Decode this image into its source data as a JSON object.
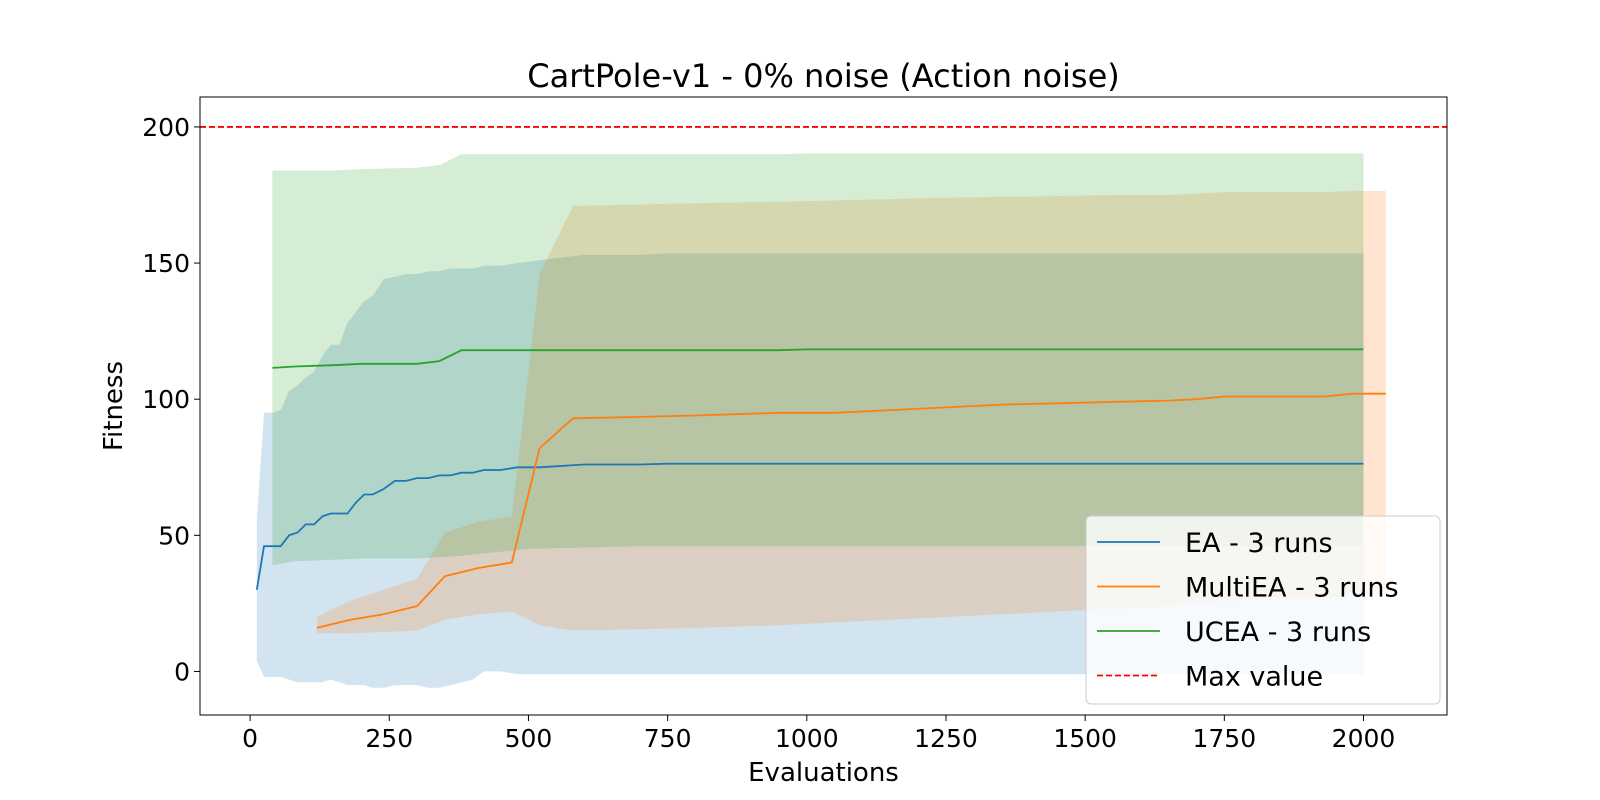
{
  "chart_data": {
    "type": "line",
    "title": "CartPole-v1 - 0% noise (Action noise)",
    "xlabel": "Evaluations",
    "ylabel": "Fitness",
    "xlim": [
      -90,
      2150
    ],
    "ylim": [
      -16,
      211
    ],
    "xticks": [
      0,
      250,
      500,
      750,
      1000,
      1250,
      1500,
      1750,
      2000
    ],
    "yticks": [
      0,
      50,
      100,
      150,
      200
    ],
    "grid": false,
    "legend_position": "lower-right",
    "reference_line": {
      "name": "Max value",
      "y": 200,
      "color": "#ff0000",
      "style": "dashed"
    },
    "series": [
      {
        "name": "EA - 3 runs",
        "color": "#1f77b4",
        "x": [
          12,
          25,
          40,
          55,
          70,
          85,
          100,
          115,
          130,
          145,
          160,
          175,
          190,
          205,
          220,
          240,
          260,
          280,
          300,
          320,
          340,
          360,
          380,
          400,
          420,
          450,
          480,
          520,
          600,
          700,
          750,
          900,
          1000,
          1500,
          2000
        ],
        "mean": [
          30,
          46,
          46,
          46,
          50,
          51,
          54,
          54,
          57,
          58,
          58,
          58,
          62,
          65,
          65,
          67,
          70,
          70,
          71,
          71,
          72,
          72,
          73,
          73,
          74,
          74,
          75,
          75,
          76,
          76,
          76.3,
          76.3,
          76.3,
          76.3,
          76.3
        ],
        "upper": [
          55,
          95,
          95,
          96,
          103,
          105,
          108,
          110,
          116,
          120,
          120,
          128,
          132,
          136,
          138,
          144,
          145,
          146,
          146,
          147,
          147,
          148,
          148,
          148,
          149,
          149,
          150,
          151,
          153,
          153,
          153.5,
          153.5,
          153.5,
          153.5,
          153.5
        ],
        "lower": [
          4,
          -2,
          -2,
          -2,
          -3,
          -4,
          -4,
          -4,
          -4,
          -3,
          -4,
          -5,
          -5,
          -5,
          -6,
          -6,
          -5,
          -5,
          -5,
          -6,
          -6,
          -5,
          -4,
          -3,
          0,
          0,
          -1,
          -1,
          -1,
          -1,
          -1,
          -1,
          -1,
          -1,
          -1
        ]
      },
      {
        "name": "MultiEA - 3 runs",
        "color": "#ff7f0e",
        "x": [
          120,
          180,
          240,
          300,
          350,
          410,
          470,
          520,
          580,
          700,
          800,
          950,
          1050,
          1150,
          1250,
          1350,
          1450,
          1550,
          1650,
          1700,
          1750,
          1850,
          1930,
          1980,
          2040
        ],
        "mean": [
          16,
          19,
          21,
          24,
          35,
          38,
          40,
          82,
          93,
          93.5,
          94,
          95,
          95,
          96,
          97,
          98,
          98.5,
          99,
          99.5,
          100,
          101,
          101,
          101,
          102,
          102
        ],
        "upper": [
          20,
          26,
          30,
          34,
          51,
          55,
          57,
          146,
          171,
          171.5,
          172,
          172.5,
          173,
          173.5,
          174,
          174.3,
          174.6,
          175,
          175,
          175.5,
          176,
          176,
          176,
          176.5,
          176.5
        ],
        "lower": [
          14,
          14,
          14.5,
          15,
          19,
          21,
          22,
          17,
          15,
          15.5,
          16,
          17,
          18,
          19,
          20,
          21,
          22,
          23,
          24,
          25,
          26,
          27,
          27,
          28,
          28
        ]
      },
      {
        "name": "UCEA - 3 runs",
        "color": "#2ca02c",
        "x": [
          40,
          80,
          150,
          200,
          300,
          340,
          380,
          500,
          700,
          950,
          1000,
          1500,
          2000
        ],
        "mean": [
          111.5,
          112,
          112.5,
          113,
          113,
          114,
          118,
          118,
          118,
          118,
          118.3,
          118.3,
          118.3
        ],
        "upper": [
          184,
          184,
          184,
          184.5,
          185,
          186,
          190,
          190,
          190,
          190,
          190.3,
          190.3,
          190.3
        ],
        "lower": [
          39,
          40.5,
          41,
          41.5,
          41.5,
          42,
          42.5,
          45,
          46,
          46,
          46,
          46,
          46
        ]
      }
    ]
  }
}
